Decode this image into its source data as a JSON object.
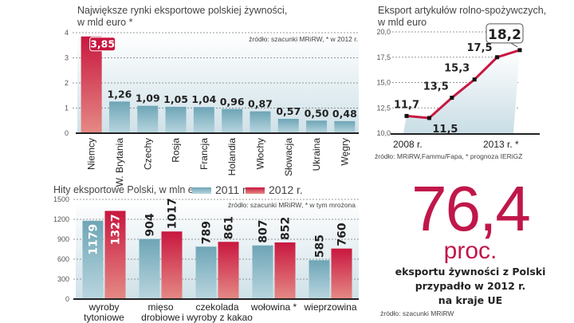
{
  "chart_data": [
    {
      "type": "bar",
      "title": "Największe rynki eksportowe polskiej żywności,",
      "subtitle": "w mld euro *",
      "source": "źródło: szacunki MRiRW, * w 2012 r.",
      "xlabel": "",
      "ylabel": "",
      "ylim": [
        0,
        4
      ],
      "yticks": [
        "0",
        "1",
        "2",
        "3",
        "4"
      ],
      "grid": true,
      "categories": [
        "Niemcy",
        "W. Brytania",
        "Czechy",
        "Rosja",
        "Francja",
        "Holandia",
        "Włochy",
        "Słowacja",
        "Ukraina",
        "Węgry"
      ],
      "values": [
        3.85,
        1.26,
        1.09,
        1.05,
        1.04,
        0.96,
        0.87,
        0.57,
        0.5,
        0.48
      ],
      "value_labels": [
        "3,85",
        "1,26",
        "1,09",
        "1,05",
        "1,04",
        "0,96",
        "0,87",
        "0,57",
        "0,50",
        "0,48"
      ],
      "highlight_index": 0,
      "colors": {
        "highlight": "#c8173f",
        "normal": "#7fb3c2"
      }
    },
    {
      "type": "line",
      "title": "Eksport artykułów rolno-spożywczych,",
      "subtitle": "w mld euro",
      "source": "źródło:  MRiRW,Fammu/Fapa, * prognoza IERiGŻ",
      "x": [
        2008,
        2009,
        2010,
        2011,
        2012,
        2013
      ],
      "xtick_labels": [
        "2008 r.",
        "2013 r. *"
      ],
      "values": [
        11.7,
        11.5,
        13.5,
        15.3,
        17.5,
        18.2
      ],
      "value_labels": [
        "11,7",
        "11,5",
        "13,5",
        "15,3",
        "17,5",
        "18,2"
      ],
      "ylim": [
        10,
        20
      ],
      "yticks": [
        "10,0",
        "12,5",
        "15,0",
        "17,5",
        "20,0"
      ],
      "grid": true,
      "highlight_last": true,
      "colors": {
        "line": "#c8173f",
        "area": "#dde9ee"
      }
    },
    {
      "type": "bar",
      "title": "Hity eksportowe Polski, w mln euro",
      "source": "źródło: szacunki MRiRW, * w tym mrożona",
      "legend": [
        "2011 r.",
        "2012 r."
      ],
      "legend_position": "top",
      "ylim": [
        0,
        1500
      ],
      "yticks": [
        "0",
        "300",
        "600",
        "900",
        "1200",
        "1500"
      ],
      "grid": true,
      "categories": [
        [
          "wyroby",
          "tytoniowe"
        ],
        [
          "mięso",
          "drobiowe"
        ],
        [
          "czekolada",
          "i wyroby z kakao"
        ],
        [
          "wołowina *"
        ],
        [
          "wieprzowina"
        ]
      ],
      "series": [
        {
          "name": "2011 r.",
          "values": [
            1179,
            904,
            789,
            807,
            585
          ],
          "color": "#7fb3c2"
        },
        {
          "name": "2012 r.",
          "values": [
            1327,
            1017,
            861,
            852,
            760
          ],
          "color": "#c8173f"
        }
      ]
    }
  ],
  "highlight": {
    "number": "76,4",
    "unit": "proc.",
    "description": [
      "eksportu żywności z Polski",
      "przypadło w 2012 r.",
      "na kraje UE"
    ],
    "source": "źródło: szacunki MRiRW"
  }
}
